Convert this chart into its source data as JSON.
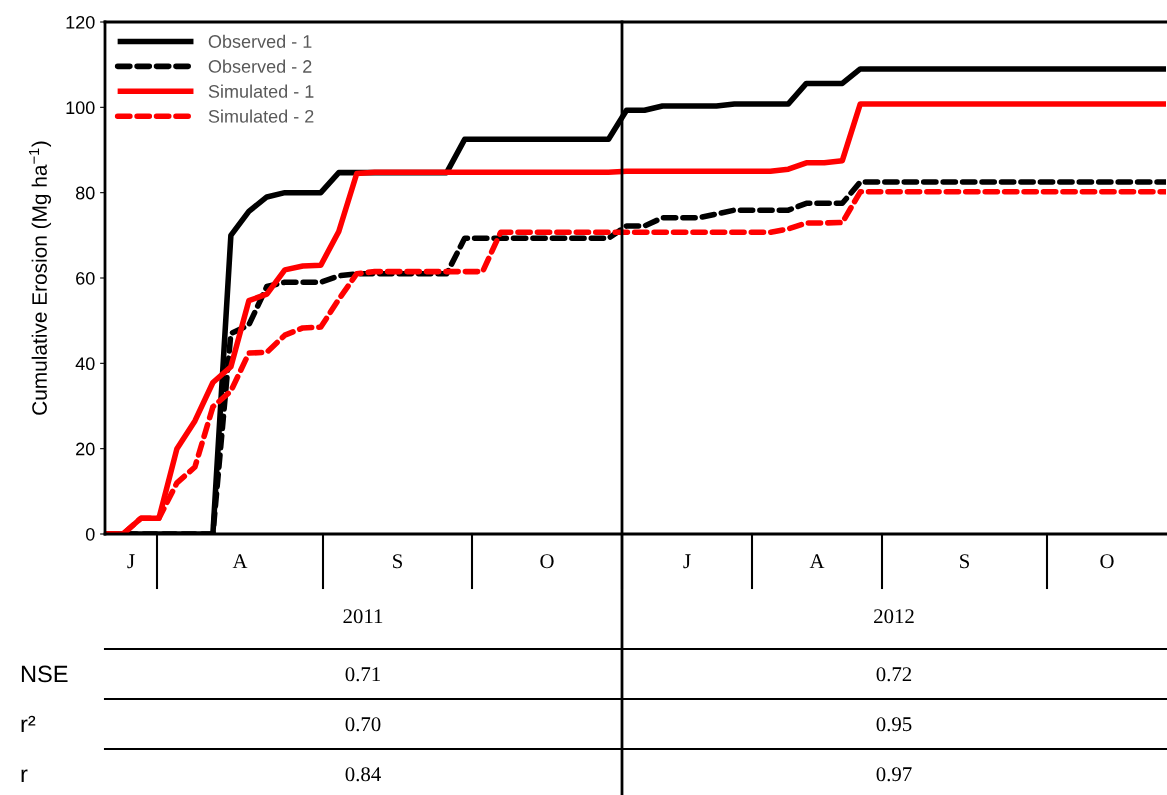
{
  "chart_data": {
    "type": "line",
    "ylabel": "Cumulative Erosion (Mg ha$^{−1}$)",
    "categories": [
      null,
      null,
      null,
      null,
      null,
      null,
      null,
      null,
      null,
      null,
      null,
      null,
      null,
      null,
      null,
      null,
      null,
      null,
      null,
      null,
      null,
      null,
      null,
      null,
      null,
      null,
      null,
      null,
      null,
      null,
      null,
      null,
      null,
      null,
      null,
      null,
      null,
      null,
      null,
      null,
      null,
      null,
      null,
      null,
      null,
      null,
      null,
      null,
      null,
      null,
      null,
      null,
      null,
      null,
      null,
      null,
      null,
      null,
      null,
      null
    ],
    "series": [
      {
        "name": "Observed - 1",
        "color": "#000000",
        "line_style": "solid",
        "values": [
          0,
          0,
          0,
          0,
          0,
          0,
          0,
          70,
          75.6,
          79,
          80,
          80,
          80,
          84.7,
          84.7,
          84.7,
          84.7,
          84.7,
          84.7,
          84.7,
          92.5,
          92.5,
          92.5,
          92.5,
          92.5,
          92.5,
          92.5,
          92.5,
          92.5,
          99.3,
          99.3,
          100.3,
          100.3,
          100.3,
          100.3,
          100.8,
          100.8,
          100.8,
          100.8,
          105.6,
          105.6,
          105.6,
          109,
          109,
          109,
          109,
          109,
          109,
          109,
          109,
          109,
          109,
          109,
          109,
          109,
          109,
          109,
          109,
          109,
          109
        ]
      },
      {
        "name": "Observed - 2",
        "color": "#000000",
        "line_style": "dashed",
        "values": [
          0,
          0,
          0,
          0,
          0,
          0,
          0,
          47,
          49,
          58,
          59,
          59,
          59,
          60.5,
          61,
          61,
          61,
          61,
          61,
          61,
          69.3,
          69.3,
          69.3,
          69.3,
          69.3,
          69.3,
          69.3,
          69.3,
          69.3,
          72.2,
          72.2,
          74.1,
          74.1,
          74.1,
          75,
          75.9,
          75.9,
          75.9,
          75.9,
          77.5,
          77.5,
          77.5,
          82.5,
          82.5,
          82.5,
          82.5,
          82.5,
          82.5,
          82.5,
          82.5,
          82.5,
          82.5,
          82.5,
          82.5,
          82.5,
          82.5,
          82.5,
          82.5,
          82.5,
          82.5
        ]
      },
      {
        "name": "Simulated - 1",
        "color": "#ff0000",
        "line_style": "solid",
        "values": [
          0,
          0,
          3.7,
          3.7,
          20,
          26.5,
          35.5,
          39.2,
          54.7,
          56.2,
          61.9,
          62.8,
          63,
          70.9,
          84.5,
          84.8,
          84.8,
          84.8,
          84.8,
          84.8,
          84.8,
          84.8,
          84.8,
          84.8,
          84.8,
          84.8,
          84.8,
          84.8,
          84.8,
          85,
          85,
          85,
          85,
          85,
          85,
          85,
          85,
          85,
          85.5,
          87,
          87,
          87.5,
          100.8,
          100.8,
          100.8,
          100.8,
          100.8,
          100.8,
          100.8,
          100.8,
          100.8,
          100.8,
          100.8,
          100.8,
          100.8,
          100.8,
          100.8,
          100.8,
          100.8,
          100.8
        ]
      },
      {
        "name": "Simulated - 2",
        "color": "#ff0000",
        "line_style": "dashed",
        "values": [
          0,
          0,
          3.7,
          3.7,
          12,
          15.7,
          29.8,
          33.5,
          42.4,
          42.6,
          46.6,
          48.3,
          48.5,
          55,
          61,
          61.5,
          61.5,
          61.5,
          61.5,
          61.5,
          61.5,
          61.5,
          70.7,
          70.7,
          70.7,
          70.7,
          70.7,
          70.7,
          70.7,
          70.7,
          70.7,
          70.7,
          70.7,
          70.7,
          70.7,
          70.7,
          70.7,
          70.7,
          71.5,
          72.9,
          72.9,
          73,
          80.2,
          80.2,
          80.2,
          80.2,
          80.2,
          80.2,
          80.2,
          80.2,
          80.2,
          80.2,
          80.2,
          80.2,
          80.2,
          80.2,
          80.2,
          80.2,
          80.2,
          80.2
        ]
      }
    ],
    "ylim": [
      0,
      120
    ],
    "yticks": [
      0,
      20,
      40,
      60,
      80,
      100,
      120
    ],
    "grid": false,
    "legend": "top left",
    "marker": "none",
    "annotations": [
      "J",
      "A",
      "S",
      "O",
      "J",
      "A",
      "S",
      "O",
      "2011",
      "2012",
      "NSE",
      "0.71",
      "0.72",
      "r²",
      "0.70",
      "0.95",
      "r",
      "0.84",
      "0.97"
    ]
  }
}
